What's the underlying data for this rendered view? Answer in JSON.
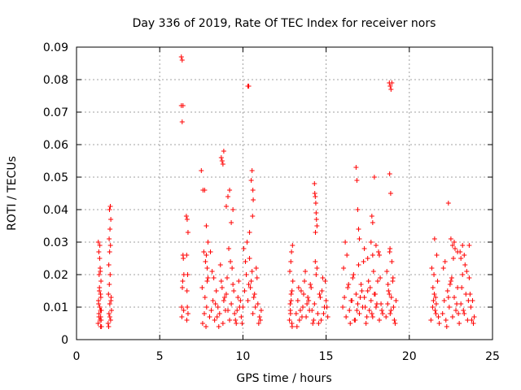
{
  "chart_data": {
    "type": "scatter",
    "title": "Day 336 of 2019, Rate Of TEC Index for receiver nors",
    "xlabel": "GPS time / hours",
    "ylabel": "ROTI / TECUs",
    "xlim": [
      0,
      25
    ],
    "ylim": [
      0,
      0.09
    ],
    "xticks": [
      "0",
      "5",
      "10",
      "15",
      "20",
      "25"
    ],
    "yticks": [
      "0",
      "0.01",
      "0.02",
      "0.03",
      "0.04",
      "0.05",
      "0.06",
      "0.07",
      "0.08",
      "0.09"
    ],
    "grid": true,
    "marker": "+",
    "color": "#ff0000",
    "series": [
      {
        "x": [
          1.3,
          1.35,
          1.4,
          1.45,
          1.5,
          1.32,
          1.38,
          1.44,
          1.48,
          1.36,
          1.42,
          1.46,
          1.34,
          1.4,
          1.47,
          1.33,
          1.41,
          1.45,
          1.37,
          1.43,
          1.31,
          1.39,
          1.49,
          1.35,
          1.44,
          1.9,
          1.95,
          2.0,
          2.05,
          2.1,
          1.92,
          1.97,
          2.02,
          2.07,
          1.94,
          1.99,
          2.04,
          1.96,
          2.01,
          2.06,
          1.98,
          2.03,
          2.08,
          1.93,
          2.0,
          6.3,
          6.35,
          6.4,
          6.3,
          6.35,
          6.4,
          6.42,
          6.45,
          6.38,
          6.36,
          6.32,
          6.44,
          6.33,
          6.6,
          6.65,
          6.7,
          6.62,
          6.68,
          6.64,
          6.66,
          6.7,
          6.63,
          7.5,
          7.6,
          7.7,
          7.8,
          7.9,
          7.65,
          7.75,
          7.85,
          7.55,
          7.72,
          7.82,
          7.68,
          7.58,
          7.78,
          8.0,
          8.1,
          8.2,
          8.3,
          8.4,
          8.5,
          8.6,
          8.7,
          8.8,
          8.9,
          8.15,
          8.35,
          8.55,
          8.75,
          8.95,
          8.05,
          8.25,
          8.45,
          8.65,
          8.85,
          9.0,
          9.1,
          9.2,
          9.3,
          9.4,
          9.5,
          9.6,
          9.7,
          9.8,
          9.9,
          9.05,
          9.25,
          9.45,
          9.65,
          9.85,
          9.15,
          9.35,
          9.55,
          9.75,
          9.95,
          10.0,
          10.1,
          10.2,
          10.3,
          10.4,
          10.5,
          10.6,
          10.7,
          10.8,
          10.9,
          11.0,
          11.1,
          10.05,
          10.25,
          10.45,
          10.65,
          10.85,
          11.05,
          10.15,
          10.35,
          10.55,
          10.75,
          10.95,
          10.3,
          10.35,
          10.4,
          10.5,
          10.55,
          10.6,
          10.58,
          10.62,
          8.7,
          8.75,
          8.8,
          8.85,
          9.0,
          9.1,
          9.2,
          9.3,
          9.4,
          7.8,
          7.85,
          7.9,
          12.8,
          12.85,
          12.9,
          12.95,
          13.0,
          12.82,
          12.88,
          12.92,
          12.98,
          12.86,
          12.94,
          12.84,
          12.9,
          12.96,
          13.2,
          13.3,
          13.4,
          13.5,
          13.6,
          13.7,
          13.8,
          13.9,
          14.0,
          14.1,
          14.2,
          14.3,
          14.4,
          14.5,
          14.6,
          14.7,
          14.8,
          14.9,
          15.0,
          15.1,
          13.25,
          13.45,
          13.65,
          13.85,
          14.05,
          14.25,
          14.45,
          14.65,
          14.85,
          15.05,
          13.35,
          13.55,
          13.75,
          13.95,
          14.15,
          14.35,
          14.55,
          14.75,
          14.95,
          14.3,
          14.35,
          14.4,
          14.45,
          14.38,
          14.42,
          14.32,
          14.36,
          16.0,
          16.1,
          16.2,
          16.3,
          16.4,
          16.5,
          16.6,
          16.7,
          16.8,
          16.9,
          17.0,
          17.1,
          17.2,
          17.3,
          17.4,
          17.5,
          17.6,
          17.7,
          17.8,
          17.9,
          18.0,
          18.1,
          18.2,
          18.3,
          18.4,
          16.05,
          16.25,
          16.45,
          16.65,
          16.85,
          17.05,
          17.25,
          17.45,
          17.65,
          17.85,
          18.05,
          18.25,
          16.15,
          16.35,
          16.55,
          16.75,
          16.95,
          17.15,
          17.35,
          17.55,
          17.75,
          17.95,
          18.15,
          18.35,
          16.8,
          16.85,
          16.9,
          16.95,
          17.0,
          17.3,
          17.5,
          17.7,
          17.8,
          17.75,
          17.8,
          17.9,
          18.0,
          18.2,
          18.6,
          18.7,
          18.8,
          18.9,
          19.0,
          19.1,
          19.2,
          18.65,
          18.75,
          18.85,
          18.95,
          19.05,
          19.15,
          18.72,
          18.82,
          18.92,
          19.02,
          18.8,
          18.85,
          18.9,
          18.95,
          18.82,
          18.88,
          18.84,
          21.3,
          21.4,
          21.5,
          21.6,
          21.7,
          21.8,
          21.35,
          21.45,
          21.55,
          21.65,
          21.75,
          21.42,
          21.52,
          21.62,
          21.48,
          21.58,
          22.0,
          22.1,
          22.2,
          22.3,
          22.4,
          22.5,
          22.6,
          22.7,
          22.8,
          22.9,
          23.0,
          23.1,
          23.2,
          23.3,
          23.4,
          23.5,
          23.6,
          23.7,
          23.8,
          23.9,
          22.05,
          22.25,
          22.45,
          22.65,
          22.85,
          23.05,
          23.25,
          23.45,
          23.65,
          23.85,
          22.15,
          22.35,
          22.55,
          22.75,
          22.95,
          23.15,
          23.35,
          23.55,
          23.75,
          22.35,
          22.5,
          22.6,
          22.7,
          22.9,
          23.1,
          23.3,
          23.2,
          23.6
        ],
        "y": [
          0.005,
          0.008,
          0.01,
          0.007,
          0.004,
          0.012,
          0.016,
          0.009,
          0.006,
          0.02,
          0.022,
          0.013,
          0.027,
          0.029,
          0.018,
          0.011,
          0.006,
          0.004,
          0.015,
          0.021,
          0.03,
          0.025,
          0.009,
          0.007,
          0.014,
          0.005,
          0.008,
          0.011,
          0.006,
          0.009,
          0.014,
          0.017,
          0.02,
          0.012,
          0.023,
          0.027,
          0.029,
          0.031,
          0.034,
          0.037,
          0.04,
          0.041,
          0.013,
          0.004,
          0.007,
          0.087,
          0.086,
          0.072,
          0.072,
          0.067,
          0.026,
          0.025,
          0.02,
          0.018,
          0.016,
          0.01,
          0.009,
          0.007,
          0.038,
          0.037,
          0.033,
          0.026,
          0.02,
          0.015,
          0.01,
          0.008,
          0.006,
          0.052,
          0.046,
          0.046,
          0.035,
          0.03,
          0.027,
          0.024,
          0.018,
          0.016,
          0.013,
          0.01,
          0.008,
          0.005,
          0.004,
          0.007,
          0.009,
          0.012,
          0.006,
          0.015,
          0.01,
          0.008,
          0.018,
          0.005,
          0.013,
          0.021,
          0.011,
          0.004,
          0.016,
          0.009,
          0.027,
          0.019,
          0.007,
          0.023,
          0.012,
          0.014,
          0.009,
          0.006,
          0.011,
          0.017,
          0.008,
          0.005,
          0.013,
          0.01,
          0.007,
          0.019,
          0.024,
          0.015,
          0.009,
          0.012,
          0.028,
          0.022,
          0.006,
          0.018,
          0.005,
          0.01,
          0.015,
          0.02,
          0.012,
          0.025,
          0.018,
          0.008,
          0.014,
          0.022,
          0.011,
          0.007,
          0.009,
          0.028,
          0.03,
          0.016,
          0.013,
          0.019,
          0.006,
          0.024,
          0.017,
          0.021,
          0.01,
          0.005,
          0.078,
          0.078,
          0.033,
          0.049,
          0.052,
          0.046,
          0.038,
          0.043,
          0.056,
          0.055,
          0.054,
          0.058,
          0.041,
          0.044,
          0.046,
          0.036,
          0.04,
          0.026,
          0.022,
          0.019,
          0.006,
          0.009,
          0.012,
          0.015,
          0.018,
          0.021,
          0.024,
          0.027,
          0.029,
          0.008,
          0.005,
          0.011,
          0.014,
          0.004,
          0.008,
          0.012,
          0.006,
          0.015,
          0.01,
          0.018,
          0.007,
          0.013,
          0.009,
          0.016,
          0.005,
          0.011,
          0.02,
          0.008,
          0.014,
          0.006,
          0.019,
          0.01,
          0.012,
          0.007,
          0.004,
          0.009,
          0.014,
          0.011,
          0.017,
          0.006,
          0.022,
          0.013,
          0.008,
          0.01,
          0.016,
          0.007,
          0.021,
          0.012,
          0.009,
          0.024,
          0.005,
          0.015,
          0.018,
          0.048,
          0.044,
          0.039,
          0.035,
          0.042,
          0.037,
          0.045,
          0.033,
          0.01,
          0.013,
          0.007,
          0.016,
          0.009,
          0.012,
          0.019,
          0.006,
          0.014,
          0.011,
          0.008,
          0.017,
          0.01,
          0.013,
          0.005,
          0.015,
          0.009,
          0.012,
          0.007,
          0.014,
          0.01,
          0.018,
          0.006,
          0.011,
          0.008,
          0.022,
          0.026,
          0.005,
          0.02,
          0.009,
          0.013,
          0.024,
          0.007,
          0.016,
          0.021,
          0.011,
          0.019,
          0.03,
          0.017,
          0.012,
          0.006,
          0.023,
          0.015,
          0.01,
          0.018,
          0.008,
          0.014,
          0.027,
          0.009,
          0.053,
          0.049,
          0.04,
          0.034,
          0.031,
          0.028,
          0.025,
          0.03,
          0.026,
          0.038,
          0.036,
          0.05,
          0.029,
          0.026,
          0.007,
          0.011,
          0.014,
          0.009,
          0.018,
          0.006,
          0.012,
          0.021,
          0.015,
          0.008,
          0.024,
          0.01,
          0.005,
          0.017,
          0.027,
          0.013,
          0.019,
          0.079,
          0.078,
          0.077,
          0.079,
          0.051,
          0.045,
          0.028,
          0.006,
          0.01,
          0.014,
          0.008,
          0.018,
          0.005,
          0.022,
          0.012,
          0.009,
          0.026,
          0.007,
          0.016,
          0.031,
          0.011,
          0.02,
          0.013,
          0.008,
          0.012,
          0.006,
          0.015,
          0.01,
          0.018,
          0.007,
          0.013,
          0.009,
          0.016,
          0.005,
          0.011,
          0.02,
          0.008,
          0.014,
          0.006,
          0.019,
          0.01,
          0.012,
          0.007,
          0.022,
          0.004,
          0.017,
          0.025,
          0.011,
          0.027,
          0.009,
          0.021,
          0.014,
          0.005,
          0.024,
          0.013,
          0.019,
          0.028,
          0.008,
          0.016,
          0.023,
          0.012,
          0.006,
          0.042,
          0.031,
          0.029,
          0.03,
          0.027,
          0.025,
          0.026,
          0.029,
          0.029
        ]
      }
    ]
  }
}
